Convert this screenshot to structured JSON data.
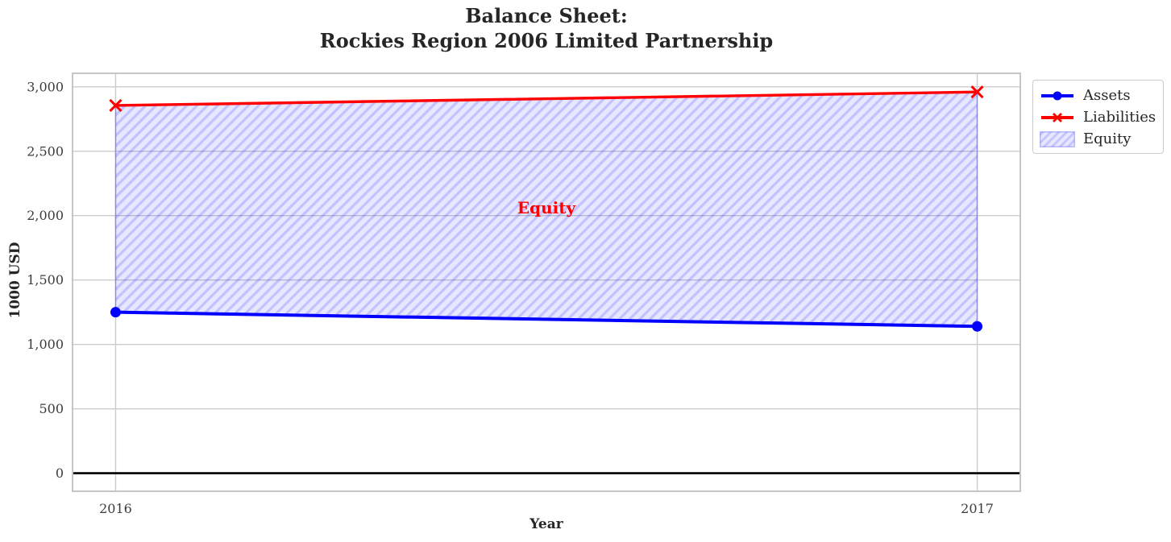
{
  "title": {
    "line1": "Balance Sheet:",
    "line2": "Rockies Region 2006 Limited Partnership"
  },
  "chart_data": {
    "type": "line",
    "x": [
      2016,
      2017
    ],
    "series": [
      {
        "name": "Assets",
        "values": [
          1250,
          1140
        ],
        "color": "#0000ff",
        "marker": "circle",
        "line_width": 4.0
      },
      {
        "name": "Liabilities",
        "values": [
          2855,
          2960
        ],
        "color": "#ff0000",
        "marker": "x",
        "line_width": 3.4
      }
    ],
    "fill_between": {
      "name": "Equity",
      "between": [
        "Assets",
        "Liabilities"
      ],
      "facecolor": "rgba(0,0,255,0.095)",
      "hatch": "//",
      "hatch_color": "rgba(0,0,255,0.16)",
      "edgecolor": "rgba(0,0,255,0.25)"
    },
    "annotation": {
      "text": "Equity",
      "x": 2016.5,
      "y": 2060,
      "color": "#ff0000"
    },
    "xlabel": "Year",
    "ylabel": "1000 USD",
    "xticks": {
      "values": [
        2016,
        2017
      ],
      "labels": [
        "2016",
        "2017"
      ]
    },
    "yticks": {
      "values": [
        0,
        500,
        1000,
        1500,
        2000,
        2500,
        3000
      ],
      "labels": [
        "0",
        "500",
        "1,000",
        "1,500",
        "2,000",
        "2,500",
        "3,000"
      ]
    },
    "xlim": [
      2015.95,
      2017.05
    ],
    "ylim": [
      -140,
      3105
    ],
    "grid": true,
    "zero_line": {
      "y": 0,
      "color": "#000000",
      "width": 2.6
    },
    "legend": {
      "position": "upper-right-outside",
      "entries": [
        "Assets",
        "Liabilities",
        "Equity"
      ]
    }
  },
  "colors": {
    "background": "#ffffff",
    "grid": "#cccccc",
    "spine": "#c6c6c6",
    "title": "#262626",
    "tick_label": "#3b3b3b"
  }
}
